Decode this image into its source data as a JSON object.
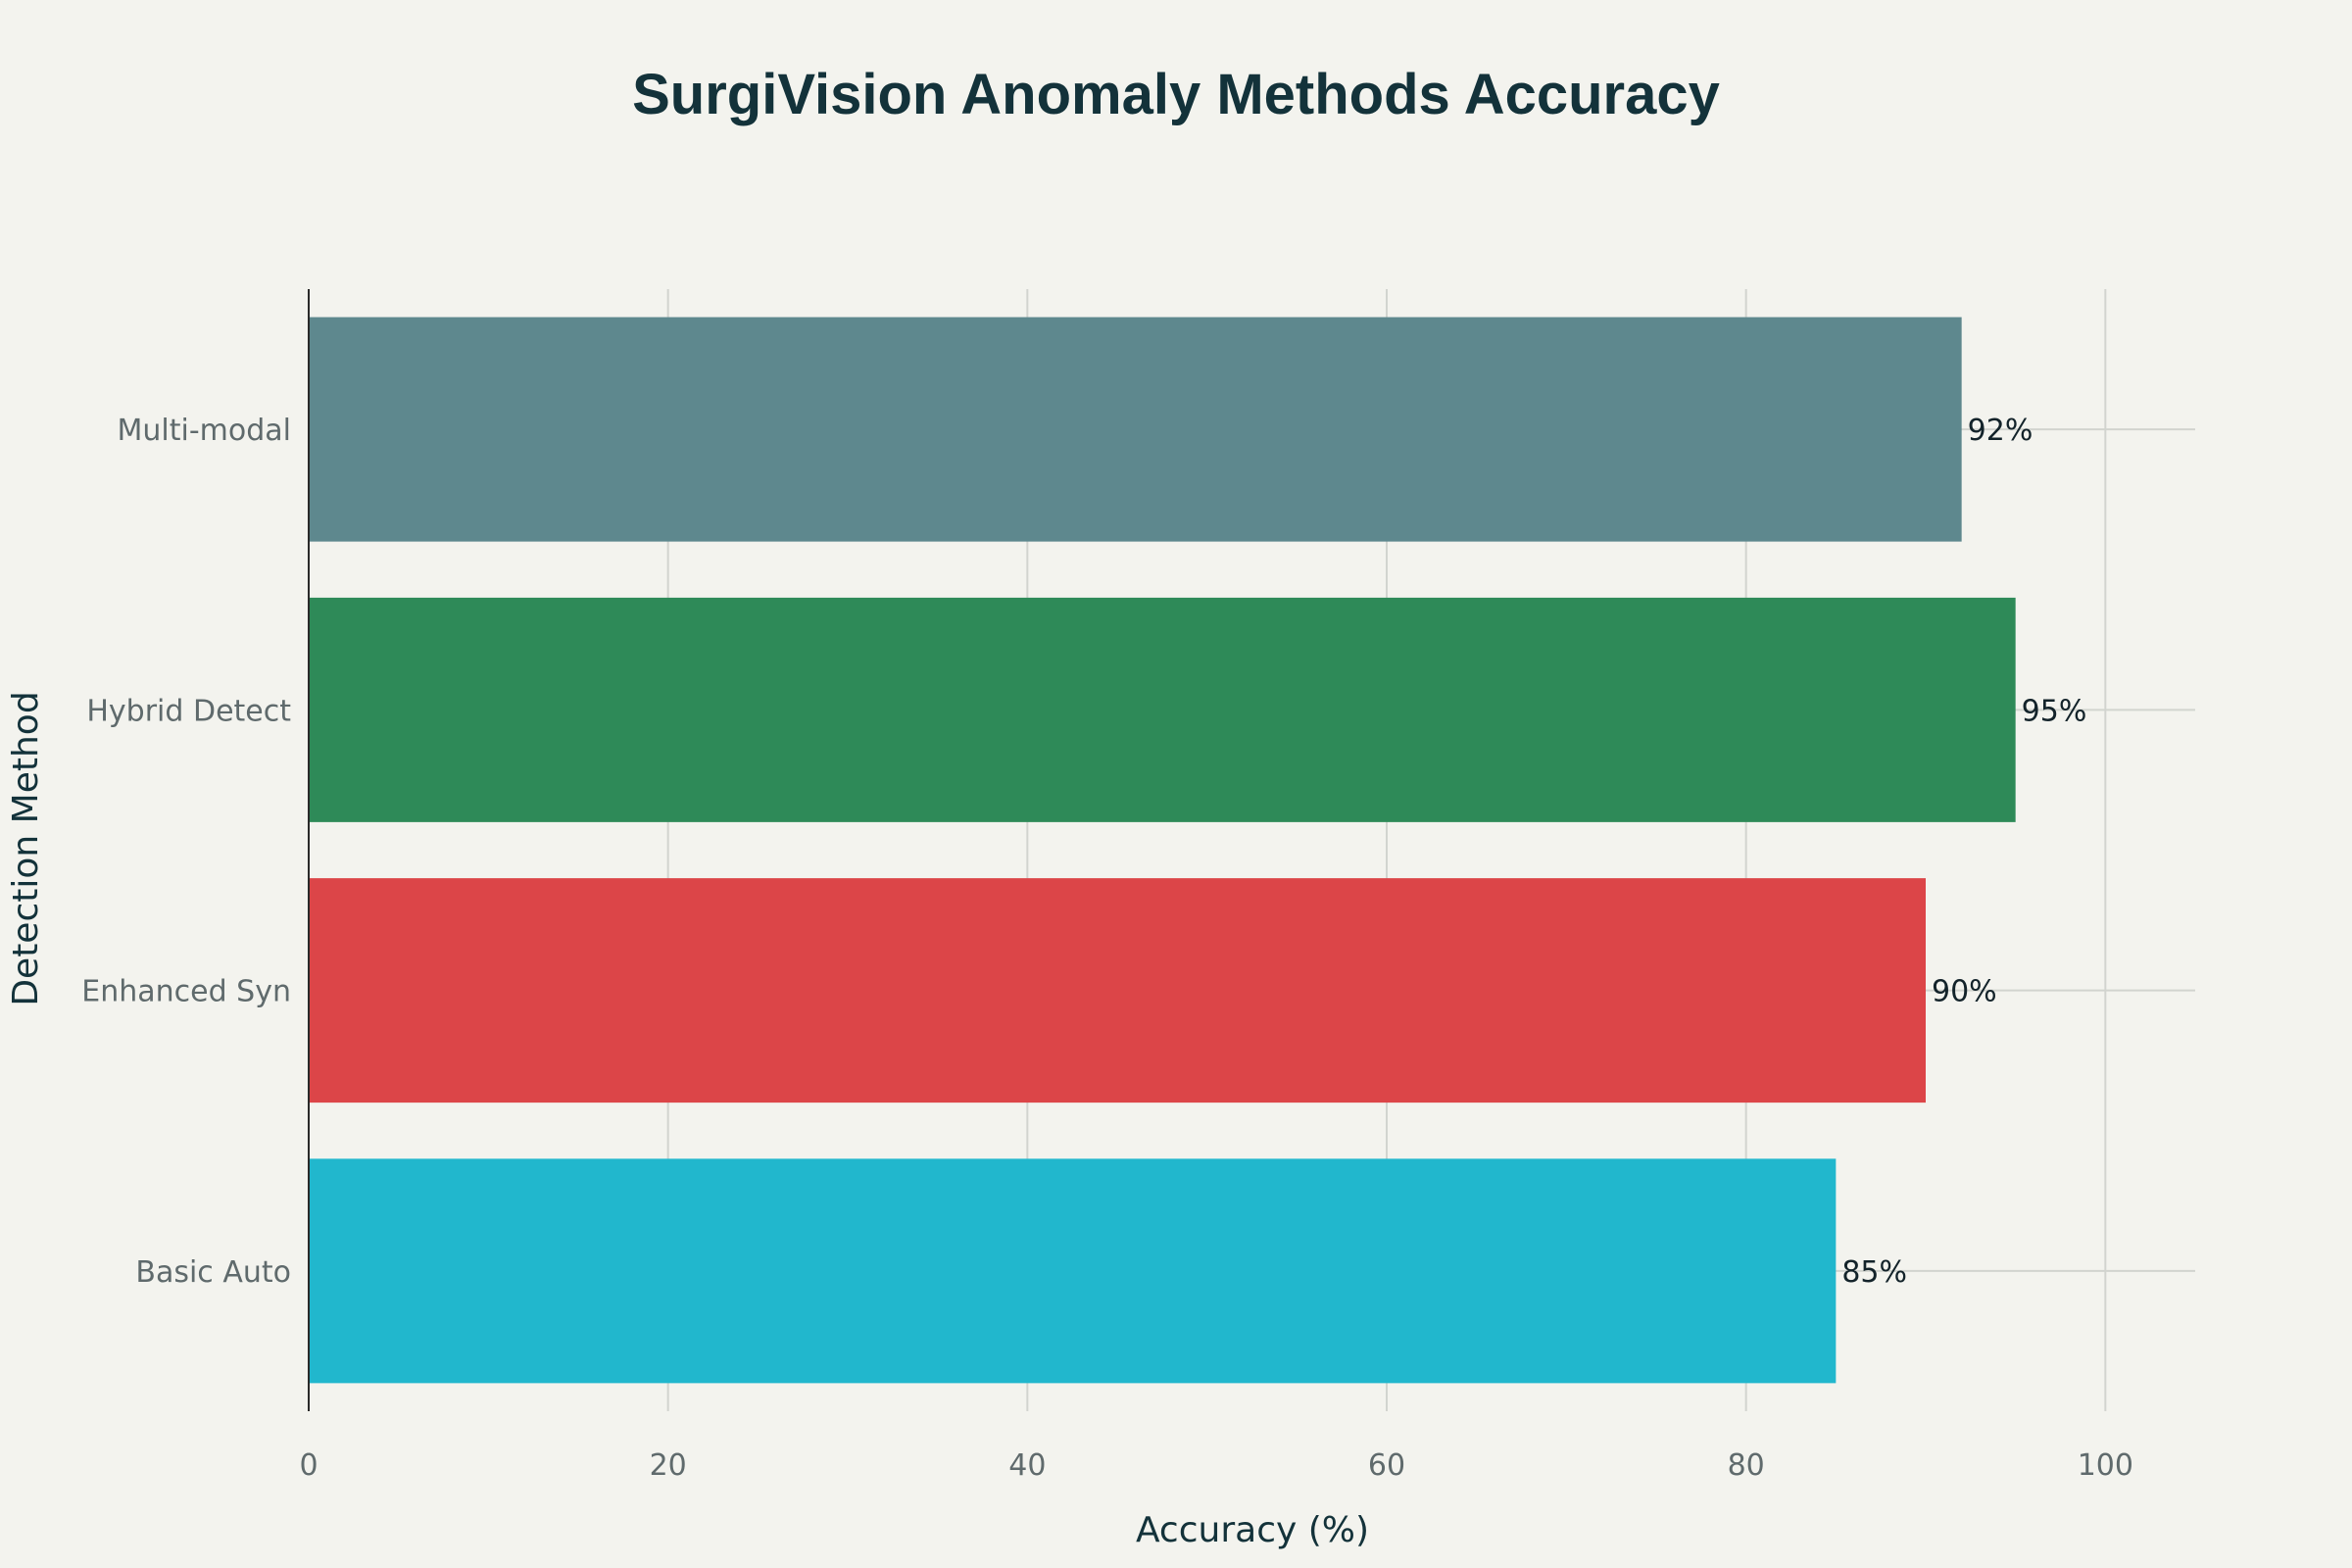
{
  "chart_data": {
    "type": "bar",
    "orientation": "horizontal",
    "title": "SurgiVision Anomaly Methods Accuracy",
    "xlabel": "Accuracy (%)",
    "ylabel": "Detection Method",
    "categories": [
      "Basic Auto",
      "Enhanced Syn",
      "Hybrid Detect",
      "Multi-modal"
    ],
    "values": [
      85,
      90,
      95,
      92
    ],
    "data_labels": [
      "85%",
      "90%",
      "95%",
      "92%"
    ],
    "colors": [
      "#21b7cd",
      "#dc4548",
      "#2e8a58",
      "#5e888e"
    ],
    "xlim": [
      0,
      105
    ],
    "x_ticks": [
      0,
      20,
      40,
      60,
      80,
      100
    ],
    "x_tick_labels": [
      "0",
      "20",
      "40",
      "60",
      "80",
      "100"
    ],
    "grid": true,
    "legend": "none"
  }
}
